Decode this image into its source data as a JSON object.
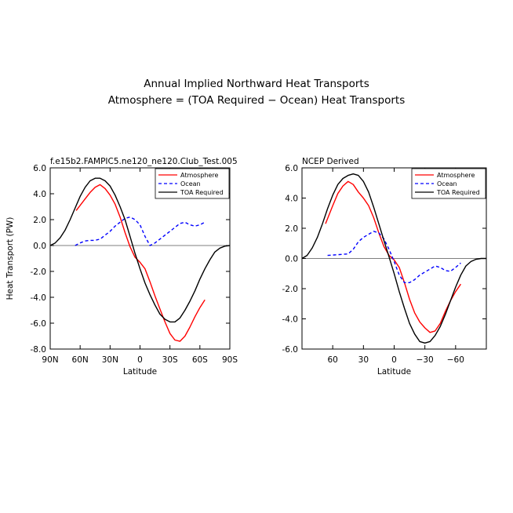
{
  "figure": {
    "title_line1": "Annual Implied Northward Heat Transports",
    "title_line2": "Atmosphere = (TOA Required − Ocean) Heat Transports"
  },
  "chart_data": [
    {
      "type": "line",
      "subtitle": "f.e15b2.FAMPIC5.ne120_ne120.Club_Test.005",
      "xlabel": "Latitude",
      "ylabel": "Heat Transport (PW)",
      "xlim": [
        90,
        -90
      ],
      "ylim": [
        -8,
        6
      ],
      "xticks": [
        90,
        60,
        30,
        0,
        -30,
        -60,
        -90
      ],
      "xtick_labels": [
        "90N",
        "60N",
        "30N",
        "0",
        "30S",
        "60S",
        "90S"
      ],
      "yticks": [
        6,
        4,
        2,
        0,
        -2,
        -4,
        -6,
        -8
      ],
      "ytick_labels": [
        "6.0",
        "4.0",
        "2.0",
        "0.0",
        "-2.0",
        "-4.0",
        "-6.0",
        "-8.0"
      ],
      "legend": [
        "Atmosphere",
        "Ocean",
        "TOA Required"
      ],
      "legend_position": "top-right",
      "zero_line": true,
      "series": [
        {
          "name": "Atmosphere",
          "color": "#ff0000",
          "style": "solid",
          "x": [
            64,
            55,
            50,
            45,
            40,
            35,
            30,
            25,
            20,
            15,
            10,
            5,
            0,
            -5,
            -10,
            -15,
            -20,
            -25,
            -30,
            -35,
            -40,
            -45,
            -50,
            -55,
            -60,
            -65
          ],
          "y": [
            2.7,
            3.6,
            4.1,
            4.5,
            4.7,
            4.4,
            3.9,
            3.2,
            2.2,
            1.0,
            -0.1,
            -0.9,
            -1.3,
            -1.8,
            -2.8,
            -3.9,
            -4.9,
            -5.9,
            -6.8,
            -7.3,
            -7.4,
            -7.0,
            -6.3,
            -5.5,
            -4.8,
            -4.2
          ]
        },
        {
          "name": "Ocean",
          "color": "#0000ff",
          "style": "dashed",
          "x": [
            65,
            60,
            55,
            50,
            45,
            40,
            35,
            30,
            25,
            20,
            15,
            10,
            5,
            0,
            -5,
            -10,
            -15,
            -20,
            -25,
            -30,
            -35,
            -40,
            -45,
            -50,
            -55,
            -60,
            -65
          ],
          "y": [
            0.0,
            0.2,
            0.35,
            0.4,
            0.4,
            0.5,
            0.8,
            1.1,
            1.5,
            1.8,
            2.1,
            2.2,
            2.0,
            1.6,
            0.7,
            0.0,
            0.2,
            0.5,
            0.8,
            1.1,
            1.4,
            1.7,
            1.8,
            1.6,
            1.5,
            1.6,
            1.8
          ]
        },
        {
          "name": "TOA Required",
          "color": "#000000",
          "style": "solid",
          "x": [
            90,
            85,
            80,
            75,
            70,
            65,
            60,
            55,
            50,
            45,
            40,
            35,
            30,
            25,
            20,
            15,
            10,
            5,
            0,
            -5,
            -10,
            -15,
            -20,
            -25,
            -30,
            -35,
            -40,
            -45,
            -50,
            -55,
            -60,
            -65,
            -70,
            -75,
            -80,
            -85,
            -90
          ],
          "y": [
            0.0,
            0.2,
            0.6,
            1.2,
            2.0,
            2.9,
            3.8,
            4.5,
            5.0,
            5.2,
            5.2,
            5.0,
            4.6,
            3.9,
            3.0,
            2.0,
            0.7,
            -0.6,
            -1.8,
            -2.9,
            -3.8,
            -4.6,
            -5.3,
            -5.7,
            -5.9,
            -5.9,
            -5.6,
            -5.0,
            -4.3,
            -3.5,
            -2.6,
            -1.8,
            -1.1,
            -0.5,
            -0.2,
            -0.05,
            0.0
          ]
        }
      ]
    },
    {
      "type": "line",
      "subtitle": "NCEP Derived",
      "xlabel": "Latitude",
      "ylabel": "",
      "xlim": [
        90,
        -90
      ],
      "ylim": [
        -6,
        6
      ],
      "xticks": [
        60,
        30,
        0,
        -30,
        -60
      ],
      "xtick_labels": [
        "60",
        "30",
        "0",
        "−30",
        "−60"
      ],
      "yticks": [
        6,
        4,
        2,
        0,
        -2,
        -4,
        -6
      ],
      "ytick_labels": [
        "6.0",
        "4.0",
        "2.0",
        "0.0",
        "-2.0",
        "-4.0",
        "-6.0"
      ],
      "legend": [
        "Atmosphere",
        "Ocean",
        "TOA Required"
      ],
      "legend_position": "top-right",
      "zero_line": true,
      "series": [
        {
          "name": "Atmosphere",
          "color": "#ff0000",
          "style": "solid",
          "x": [
            67,
            60,
            55,
            50,
            45,
            40,
            35,
            30,
            25,
            20,
            15,
            10,
            5,
            0,
            -5,
            -10,
            -15,
            -20,
            -25,
            -30,
            -35,
            -40,
            -45,
            -50,
            -55,
            -60,
            -65
          ],
          "y": [
            2.3,
            3.5,
            4.3,
            4.8,
            5.1,
            4.9,
            4.4,
            4.0,
            3.5,
            2.7,
            1.7,
            0.8,
            0.2,
            -0.1,
            -0.6,
            -1.6,
            -2.7,
            -3.6,
            -4.2,
            -4.6,
            -4.9,
            -4.8,
            -4.3,
            -3.5,
            -2.8,
            -2.2,
            -1.7
          ]
        },
        {
          "name": "Ocean",
          "color": "#0000ff",
          "style": "dashed",
          "x": [
            65,
            55,
            45,
            40,
            35,
            30,
            25,
            20,
            15,
            10,
            5,
            0,
            -5,
            -10,
            -15,
            -20,
            -25,
            -30,
            -35,
            -40,
            -45,
            -50,
            -55,
            -60,
            -65
          ],
          "y": [
            0.2,
            0.25,
            0.3,
            0.6,
            1.1,
            1.4,
            1.6,
            1.8,
            1.7,
            1.3,
            0.6,
            -0.2,
            -1.1,
            -1.6,
            -1.6,
            -1.4,
            -1.1,
            -0.9,
            -0.7,
            -0.5,
            -0.6,
            -0.8,
            -0.85,
            -0.6,
            -0.3
          ]
        },
        {
          "name": "TOA Required",
          "color": "#000000",
          "style": "solid",
          "x": [
            90,
            85,
            80,
            75,
            70,
            65,
            60,
            55,
            50,
            45,
            40,
            35,
            30,
            25,
            20,
            15,
            10,
            5,
            0,
            -5,
            -10,
            -15,
            -20,
            -25,
            -30,
            -35,
            -40,
            -45,
            -50,
            -55,
            -60,
            -65,
            -70,
            -75,
            -80,
            -85,
            -90
          ],
          "y": [
            0.0,
            0.2,
            0.7,
            1.4,
            2.3,
            3.3,
            4.2,
            4.9,
            5.3,
            5.5,
            5.6,
            5.5,
            5.1,
            4.4,
            3.4,
            2.3,
            1.2,
            0.1,
            -1.0,
            -2.2,
            -3.3,
            -4.3,
            -5.0,
            -5.5,
            -5.6,
            -5.5,
            -5.1,
            -4.5,
            -3.7,
            -2.8,
            -1.9,
            -1.1,
            -0.5,
            -0.2,
            -0.05,
            0.0,
            0.0
          ]
        }
      ]
    }
  ]
}
